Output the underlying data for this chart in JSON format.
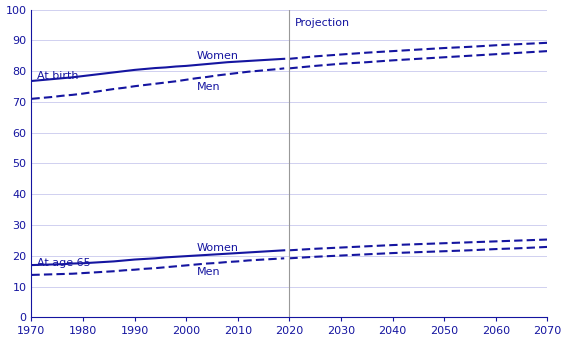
{
  "bg_color": "#ffffff",
  "line_color": "#1515a0",
  "grid_color": "#d0d0f0",
  "axis_color": "#1515a0",
  "projection_line_color": "#999999",
  "projection_label": "Projection",
  "xlim": [
    1970,
    2070
  ],
  "ylim": [
    0,
    100
  ],
  "yticks": [
    0,
    10,
    20,
    30,
    40,
    50,
    60,
    70,
    80,
    90,
    100
  ],
  "xticks": [
    1970,
    1980,
    1990,
    2000,
    2010,
    2020,
    2030,
    2040,
    2050,
    2060,
    2070
  ],
  "projection_x": 2020,
  "historical_years": [
    1970,
    1972,
    1974,
    1976,
    1978,
    1980,
    1982,
    1984,
    1986,
    1988,
    1990,
    1992,
    1994,
    1996,
    1998,
    2000,
    2002,
    2004,
    2006,
    2008,
    2010,
    2012,
    2014,
    2016,
    2018,
    2019
  ],
  "projection_years": [
    2020,
    2025,
    2030,
    2035,
    2040,
    2045,
    2050,
    2055,
    2060,
    2065,
    2070
  ],
  "birth_women_hist": [
    76.8,
    77.1,
    77.4,
    77.7,
    78.0,
    78.4,
    78.8,
    79.2,
    79.6,
    80.0,
    80.4,
    80.7,
    81.0,
    81.2,
    81.5,
    81.7,
    82.0,
    82.3,
    82.6,
    82.9,
    83.1,
    83.3,
    83.5,
    83.7,
    83.9,
    84.0
  ],
  "birth_men_hist": [
    71.0,
    71.3,
    71.6,
    72.0,
    72.3,
    72.7,
    73.2,
    73.7,
    74.2,
    74.6,
    75.1,
    75.5,
    75.9,
    76.3,
    76.7,
    77.2,
    77.7,
    78.1,
    78.6,
    79.0,
    79.4,
    79.8,
    80.1,
    80.4,
    80.7,
    80.9
  ],
  "birth_women_proj": [
    84.0,
    84.8,
    85.4,
    86.0,
    86.5,
    87.0,
    87.5,
    87.9,
    88.4,
    88.8,
    89.2
  ],
  "birth_men_proj": [
    80.9,
    81.7,
    82.4,
    82.9,
    83.5,
    84.0,
    84.5,
    85.0,
    85.5,
    86.0,
    86.5
  ],
  "age65_women_hist": [
    17.0,
    17.1,
    17.2,
    17.3,
    17.5,
    17.6,
    17.8,
    18.0,
    18.2,
    18.5,
    18.8,
    19.0,
    19.2,
    19.5,
    19.7,
    19.9,
    20.1,
    20.3,
    20.5,
    20.7,
    20.9,
    21.1,
    21.3,
    21.5,
    21.7,
    21.8
  ],
  "age65_men_hist": [
    13.8,
    13.9,
    14.0,
    14.1,
    14.2,
    14.4,
    14.6,
    14.8,
    15.0,
    15.3,
    15.5,
    15.8,
    16.0,
    16.3,
    16.6,
    16.9,
    17.2,
    17.5,
    17.7,
    18.0,
    18.2,
    18.5,
    18.7,
    18.9,
    19.1,
    19.2
  ],
  "age65_women_proj": [
    21.8,
    22.3,
    22.7,
    23.1,
    23.5,
    23.8,
    24.1,
    24.4,
    24.7,
    25.0,
    25.3
  ],
  "age65_men_proj": [
    19.2,
    19.7,
    20.1,
    20.5,
    20.9,
    21.2,
    21.5,
    21.8,
    22.2,
    22.5,
    22.9
  ],
  "label_at_birth": "At birth",
  "label_at_age65": "At age 65",
  "label_birth_women": "Women",
  "label_birth_men": "Men",
  "label_age65_women": "Women",
  "label_age65_men": "Men",
  "linewidth": 1.5,
  "fontsize_labels": 8,
  "fontsize_ticks": 8
}
